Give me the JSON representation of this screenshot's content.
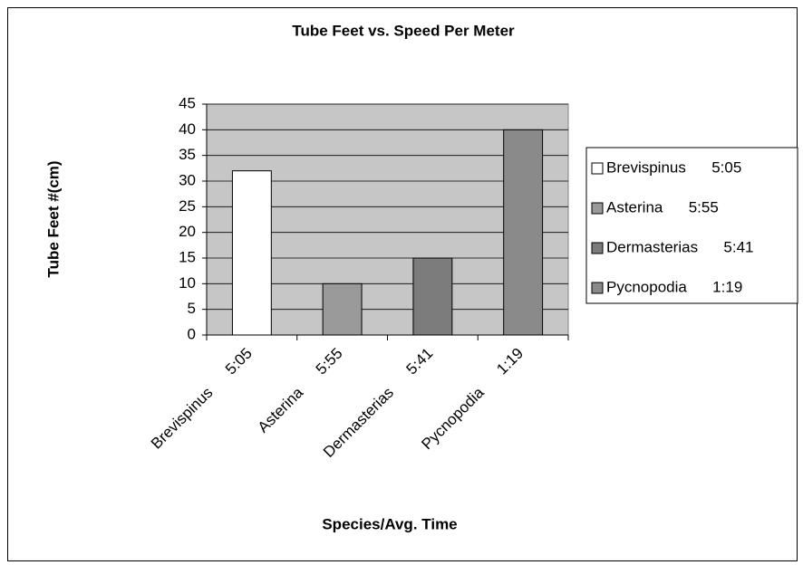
{
  "chart_data": {
    "type": "bar",
    "title": "Tube Feet vs. Speed Per Meter",
    "x_label": "Species/Avg. Time",
    "y_label": "Tube Feet #(cm)",
    "categories": [
      "Brevispinus      5:05",
      "Asterina      5:55",
      "Dermasterias      5:41",
      "Pycnopodia      1:19"
    ],
    "values": [
      32,
      10,
      15,
      40
    ],
    "colors": [
      "#ffffff",
      "#9a9a9a",
      "#7c7c7c",
      "#8a8a8a"
    ],
    "ylim": [
      0,
      45
    ],
    "yticks": [
      0,
      5,
      10,
      15,
      20,
      25,
      30,
      35,
      40,
      45
    ],
    "grid": true,
    "legend": "right"
  }
}
